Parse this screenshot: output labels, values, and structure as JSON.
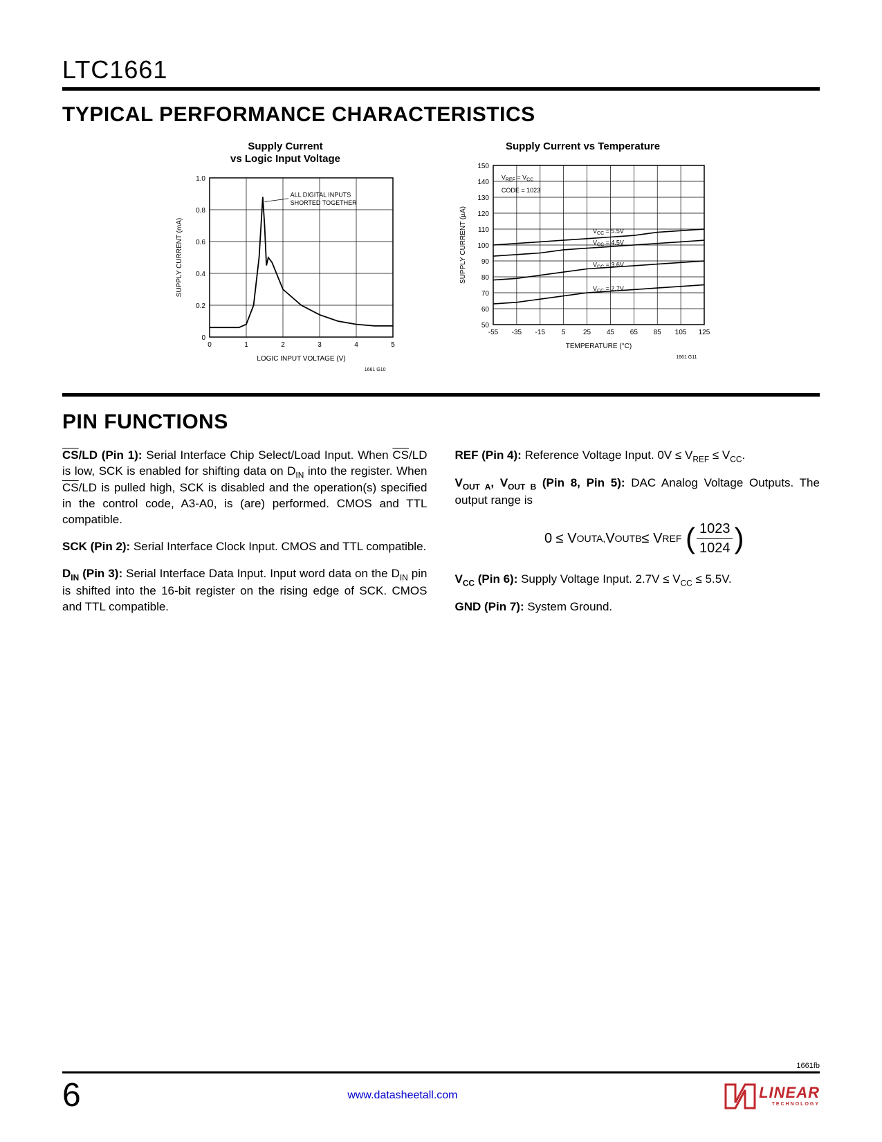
{
  "part_number": "LTC1661",
  "section1_title": "TYPICAL PERFORMANCE CHARACTERISTICS",
  "section2_title": "PIN FUNCTIONS",
  "chart1": {
    "title": "Supply Current\nvs Logic Input Voltage",
    "annotation": "ALL DIGITAL INPUTS\nSHORTED TOGETHER",
    "xlabel": "LOGIC INPUT VOLTAGE (V)",
    "ylabel": "SUPPLY CURRENT (mA)",
    "xlim": [
      0,
      5
    ],
    "xtick_step": 1,
    "ylim": [
      0,
      1.0
    ],
    "ytick_step": 0.2,
    "fig_id": "1661 G10",
    "series": [
      {
        "points": [
          [
            0,
            0.06
          ],
          [
            0.8,
            0.06
          ],
          [
            1.0,
            0.08
          ],
          [
            1.2,
            0.2
          ],
          [
            1.35,
            0.5
          ],
          [
            1.45,
            0.88
          ],
          [
            1.5,
            0.7
          ],
          [
            1.55,
            0.45
          ],
          [
            1.6,
            0.5
          ],
          [
            1.7,
            0.47
          ],
          [
            2.0,
            0.3
          ],
          [
            2.5,
            0.2
          ],
          [
            3.0,
            0.14
          ],
          [
            3.5,
            0.1
          ],
          [
            4.0,
            0.08
          ],
          [
            4.5,
            0.07
          ],
          [
            5.0,
            0.07
          ]
        ]
      }
    ],
    "grid_color": "#000000",
    "line_color": "#000000",
    "bg": "#ffffff",
    "fontsize_axis": 10,
    "fontsize_label": 10
  },
  "chart2": {
    "title": "Supply Current vs Temperature",
    "annotation1": "VREF = VCC",
    "annotation2": "CODE = 1023",
    "xlabel": "TEMPERATURE (°C)",
    "ylabel": "SUPPLY CURRENT (µA)",
    "xticks": [
      -55,
      -35,
      -15,
      5,
      25,
      45,
      65,
      85,
      105,
      125
    ],
    "ylim": [
      50,
      150
    ],
    "ytick_step": 10,
    "fig_id": "1661 G11",
    "series": [
      {
        "label": "VCC = 5.5V",
        "y_at_label": 106,
        "points": [
          [
            -55,
            100
          ],
          [
            -35,
            101
          ],
          [
            -15,
            102
          ],
          [
            5,
            103
          ],
          [
            25,
            104
          ],
          [
            45,
            105
          ],
          [
            65,
            106
          ],
          [
            85,
            108
          ],
          [
            105,
            109
          ],
          [
            125,
            110
          ]
        ]
      },
      {
        "label": "VCC = 4.5V",
        "y_at_label": 99,
        "points": [
          [
            -55,
            93
          ],
          [
            -35,
            94
          ],
          [
            -15,
            95
          ],
          [
            5,
            97
          ],
          [
            25,
            98
          ],
          [
            45,
            99
          ],
          [
            65,
            100
          ],
          [
            85,
            101
          ],
          [
            105,
            102
          ],
          [
            125,
            103
          ]
        ]
      },
      {
        "label": "VCC = 3.6V",
        "y_at_label": 85,
        "points": [
          [
            -55,
            78
          ],
          [
            -35,
            79
          ],
          [
            -15,
            81
          ],
          [
            5,
            83
          ],
          [
            25,
            85
          ],
          [
            45,
            86
          ],
          [
            65,
            87
          ],
          [
            85,
            88
          ],
          [
            105,
            89
          ],
          [
            125,
            90
          ]
        ]
      },
      {
        "label": "VCC = 2.7V",
        "y_at_label": 70,
        "points": [
          [
            -55,
            63
          ],
          [
            -35,
            64
          ],
          [
            -15,
            66
          ],
          [
            5,
            68
          ],
          [
            25,
            70
          ],
          [
            45,
            71
          ],
          [
            65,
            72
          ],
          [
            85,
            73
          ],
          [
            105,
            74
          ],
          [
            125,
            75
          ]
        ]
      }
    ],
    "grid_color": "#000000",
    "line_color": "#000000",
    "bg": "#ffffff",
    "fontsize_axis": 10,
    "fontsize_label": 10
  },
  "pins": {
    "p1_name": "CS/LD (Pin 1):",
    "p1_text": " Serial Interface Chip Select/Load Input. When CS/LD is low, SCK is enabled for shifting data on DIN into the register. When CS/LD is pulled high, SCK is disabled and the operation(s) specified in the control code, A3-A0, is (are) performed. CMOS and TTL compatible.",
    "p2_name": "SCK (Pin 2):",
    "p2_text": " Serial Interface Clock Input. CMOS and TTL compatible.",
    "p3_name": "DIN (Pin 3):",
    "p3_text": " Serial Interface Data Input. Input word data on the DIN pin is shifted into the 16-bit register on the rising edge of SCK. CMOS and TTL compatible.",
    "p4_name": "REF (Pin 4):",
    "p4_text_a": " Reference Voltage Input. 0V ≤ V",
    "p4_text_b": " ≤ V",
    "p4_text_c": ".",
    "p58_name": "VOUT A, VOUT B (Pin 8, Pin 5):",
    "p58_text": " DAC Analog Voltage Outputs. The output range is",
    "eq_lhs": "0 ≤ V",
    "eq_mid1": "V",
    "eq_mid2": " ≤ V",
    "eq_frac_n": "1023",
    "eq_frac_d": "1024",
    "p6_name": "VCC (Pin 6):",
    "p6_text_a": " Supply Voltage Input. 2.7V ≤ V",
    "p6_text_b": " ≤ 5.5V.",
    "p7_name": "GND (Pin 7):",
    "p7_text": " System Ground."
  },
  "footer": {
    "doc_rev": "1661fb",
    "page_num": "6",
    "url": "www.datasheetall.com",
    "logo_text": "LINEAR",
    "logo_sub": "TECHNOLOGY"
  }
}
